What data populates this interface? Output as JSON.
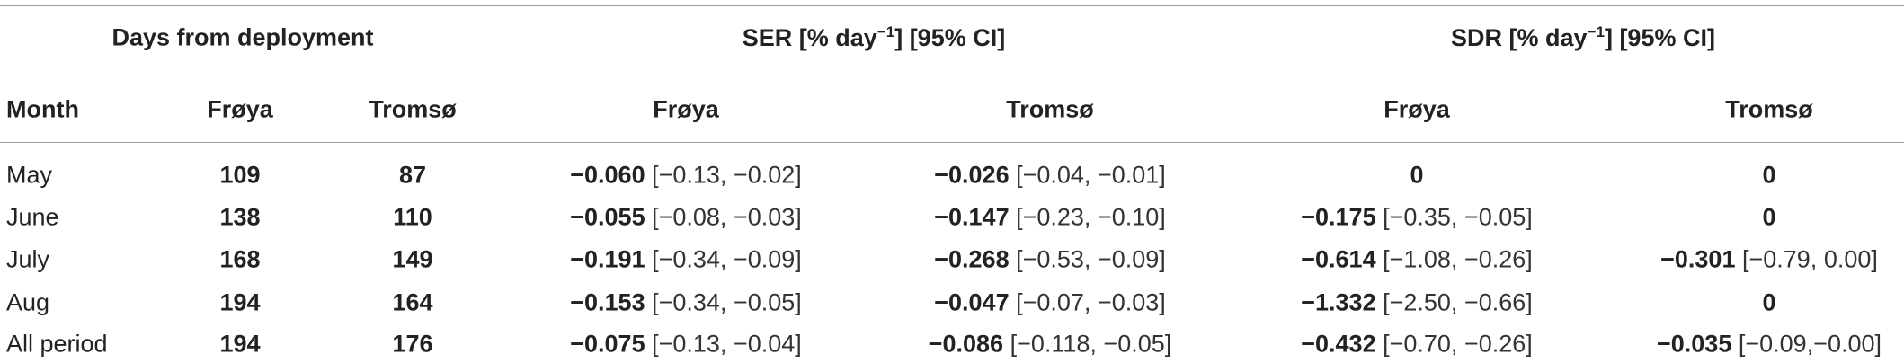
{
  "table": {
    "groups": [
      {
        "text": "Days from deployment"
      },
      {
        "pre": "SER [% day",
        "sup": "−1",
        "post": "] [95% CI]"
      },
      {
        "pre": "SDR [% day",
        "sup": "−1",
        "post": "] [95% CI]"
      }
    ],
    "columns": [
      "Month",
      "Frøya",
      "Tromsø",
      "Frøya",
      "Tromsø",
      "Frøya",
      "Tromsø"
    ],
    "rows": [
      [
        "May",
        "109",
        "87",
        {
          "value": "−0.060",
          "ci": "[−0.13, −0.02]"
        },
        {
          "value": "−0.026",
          "ci": "[−0.04, −0.01]"
        },
        {
          "value": "0"
        },
        {
          "value": "0"
        }
      ],
      [
        "June",
        "138",
        "110",
        {
          "value": "−0.055",
          "ci": "[−0.08, −0.03]"
        },
        {
          "value": "−0.147",
          "ci": "[−0.23, −0.10]"
        },
        {
          "value": "−0.175",
          "ci": "[−0.35, −0.05]"
        },
        {
          "value": "0"
        }
      ],
      [
        "July",
        "168",
        "149",
        {
          "value": "−0.191",
          "ci": "[−0.34, −0.09]"
        },
        {
          "value": "−0.268",
          "ci": "[−0.53, −0.09]"
        },
        {
          "value": "−0.614",
          "ci": "[−1.08, −0.26]"
        },
        {
          "value": "−0.301",
          "ci": "[−0.79, 0.00]"
        }
      ],
      [
        "Aug",
        "194",
        "164",
        {
          "value": "−0.153",
          "ci": "[−0.34, −0.05]"
        },
        {
          "value": "−0.047",
          "ci": "[−0.07, −0.03]"
        },
        {
          "value": "−1.332",
          "ci": "[−2.50, −0.66]"
        },
        {
          "value": "0"
        }
      ],
      [
        "All period",
        "194",
        "176",
        {
          "value": "−0.075",
          "ci": "[−0.13, −0.04]"
        },
        {
          "value": "−0.086",
          "ci": "[−0.118, −0.05]"
        },
        {
          "value": "−0.432",
          "ci": "[−0.70, −0.26]"
        },
        {
          "value": "−0.035",
          "ci": "[−0.09,−0.00]"
        }
      ]
    ]
  }
}
